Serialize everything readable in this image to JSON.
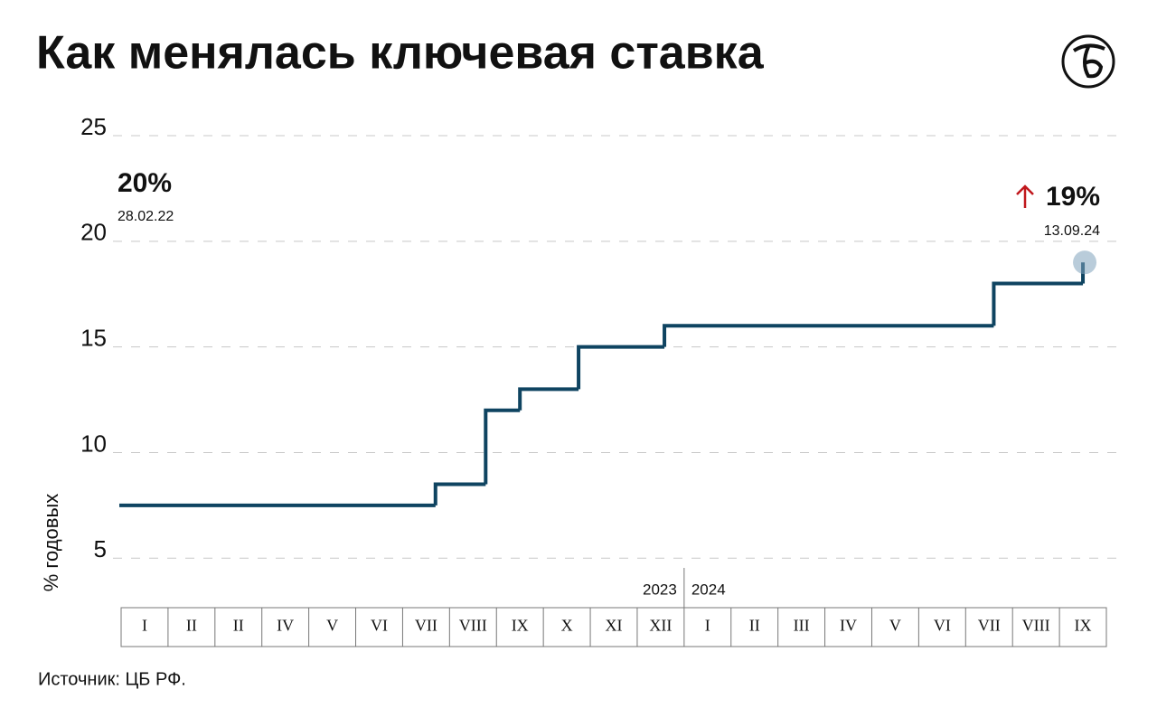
{
  "chart_data": {
    "type": "step",
    "title": "Как менялась ключевая ставка",
    "y_label": "% годовых",
    "source": "Источник: ЦБ РФ.",
    "categories": [
      "I",
      "II",
      "II",
      "IV",
      "V",
      "VI",
      "VII",
      "VIII",
      "IX",
      "X",
      "XI",
      "XII",
      "I",
      "II",
      "III",
      "IV",
      "V",
      "VI",
      "VII",
      "VIII",
      "IX"
    ],
    "year_labels": [
      "2023",
      "2024"
    ],
    "x": [
      0,
      6.7,
      7.77,
      8.5,
      9.75,
      11.58,
      18.6,
      20.5
    ],
    "xlim": [
      0,
      21
    ],
    "series": [
      {
        "color": "#0f4461",
        "values": [
          7.5,
          8.5,
          12,
          13,
          15,
          16,
          18,
          19
        ]
      }
    ],
    "ylim": [
      3,
      25
    ],
    "yticks": [
      5,
      10,
      15,
      20,
      25
    ],
    "grid": true,
    "annotations": [
      {
        "value": 20,
        "label": "20%",
        "date": "28.02.22"
      },
      {
        "value": 19,
        "label": "19%",
        "date": "13.09.24"
      }
    ]
  }
}
